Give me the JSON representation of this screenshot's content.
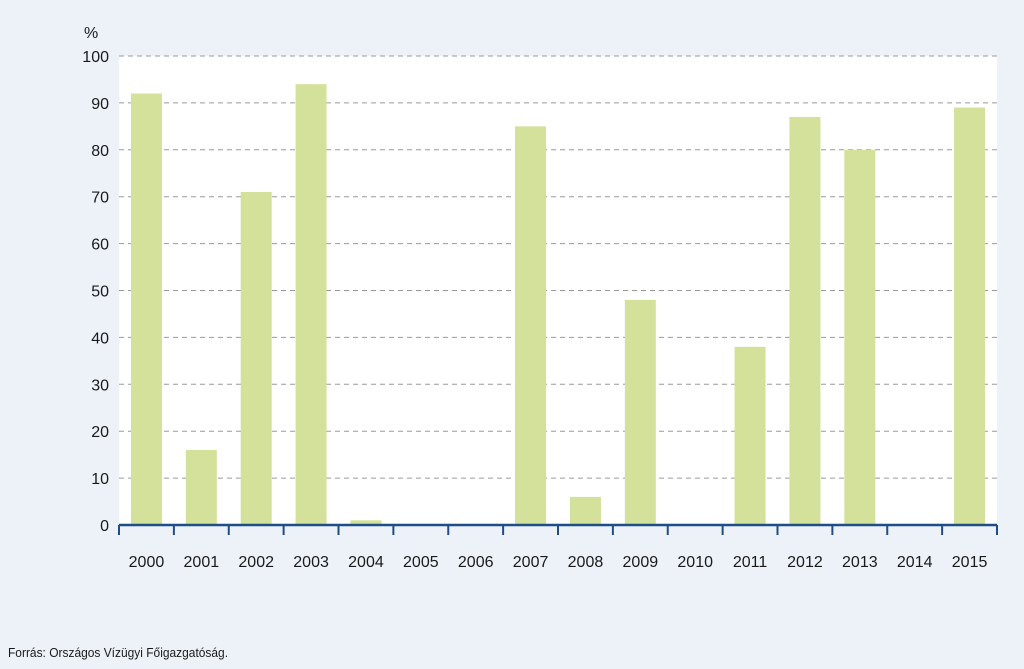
{
  "chart_data": {
    "type": "bar",
    "unit_label": "%",
    "categories": [
      "2000",
      "2001",
      "2002",
      "2003",
      "2004",
      "2005",
      "2006",
      "2007",
      "2008",
      "2009",
      "2010",
      "2011",
      "2012",
      "2013",
      "2014",
      "2015"
    ],
    "values": [
      92,
      16,
      71,
      94,
      1,
      0,
      0,
      85,
      6,
      48,
      0,
      38,
      87,
      80,
      0,
      89
    ],
    "ylim": [
      0,
      100
    ],
    "yticks": [
      0,
      10,
      20,
      30,
      40,
      50,
      60,
      70,
      80,
      90,
      100
    ],
    "grid": true,
    "colors": {
      "bar": "#d4e19b",
      "axis": "#1f4e86",
      "grid": "#9a9a9a",
      "plot_background": "#ffffff",
      "page_background": "#edf2f9"
    }
  },
  "source": "Forrás: Országos Vízügyi Főigazgatóság."
}
